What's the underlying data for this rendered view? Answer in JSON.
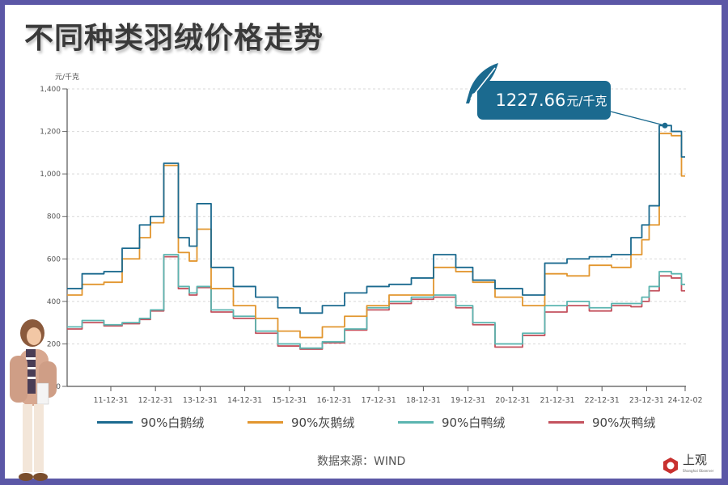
{
  "header": {
    "title": "不同种类羽绒价格走势"
  },
  "axis": {
    "y_unit": "元/千克",
    "y_ticks": [
      "0",
      "200",
      "400",
      "600",
      "800",
      "1,000",
      "1,200",
      "1,400"
    ],
    "x_ticks": [
      "11-12-31",
      "12-12-31",
      "13-12-31",
      "14-12-31",
      "15-12-31",
      "16-12-31",
      "17-12-31",
      "18-12-31",
      "19-12-31",
      "20-12-31",
      "21-12-31",
      "22-12-31",
      "23-12-31",
      "24-12-02"
    ]
  },
  "callout": {
    "value": "1227.66",
    "unit": "元/千克",
    "icon": "feather-icon",
    "color": "#1b6a8f"
  },
  "legend": [
    {
      "label": "90%白鹅绒",
      "color": "#1b6a8f"
    },
    {
      "label": "90%灰鹅绒",
      "color": "#e2962f"
    },
    {
      "label": "90%白鸭绒",
      "color": "#5bb5b0"
    },
    {
      "label": "90%灰鸭绒",
      "color": "#c4525e"
    }
  ],
  "footer": {
    "source": "数据来源：WIND",
    "logo_text": "上观",
    "logo_sub": "Shanghai Observer"
  },
  "chart_data": {
    "type": "line",
    "title": "不同种类羽绒价格走势",
    "xlabel": "",
    "ylabel": "元/千克",
    "ylim": [
      0,
      1400
    ],
    "grid": true,
    "legend_position": "bottom",
    "x": [
      "2010-09",
      "2011-06",
      "2011-12-31",
      "2012-06",
      "2012-10",
      "2012-12-31",
      "2013-03",
      "2013-07",
      "2013-10",
      "2013-12-31",
      "2014-06",
      "2014-12-31",
      "2015-06",
      "2015-12-31",
      "2016-06",
      "2016-12-31",
      "2017-06",
      "2017-12-31",
      "2018-06",
      "2018-12-31",
      "2019-06",
      "2019-12-31",
      "2020-03",
      "2020-12-31",
      "2021-06",
      "2021-12-31",
      "2022-06",
      "2022-12-31",
      "2023-06",
      "2023-09",
      "2023-12-31",
      "2024-03",
      "2024-06",
      "2024-09",
      "2024-12-02"
    ],
    "series": [
      {
        "name": "90%白鹅绒",
        "color": "#1b6a8f",
        "values": [
          460,
          530,
          540,
          650,
          760,
          800,
          1050,
          700,
          660,
          860,
          560,
          470,
          420,
          370,
          345,
          380,
          440,
          470,
          480,
          510,
          620,
          560,
          500,
          460,
          430,
          580,
          600,
          610,
          620,
          700,
          760,
          850,
          1227.66,
          1200,
          1080
        ]
      },
      {
        "name": "90%灰鹅绒",
        "color": "#e2962f",
        "values": [
          430,
          480,
          490,
          600,
          700,
          770,
          1040,
          630,
          590,
          740,
          460,
          380,
          320,
          260,
          230,
          280,
          330,
          380,
          430,
          430,
          560,
          540,
          490,
          420,
          380,
          530,
          520,
          570,
          560,
          620,
          690,
          760,
          1190,
          1180,
          990
        ]
      },
      {
        "name": "90%白鸭绒",
        "color": "#5bb5b0",
        "values": [
          280,
          310,
          290,
          300,
          320,
          360,
          620,
          470,
          440,
          470,
          360,
          330,
          260,
          200,
          180,
          210,
          270,
          370,
          400,
          420,
          430,
          380,
          300,
          200,
          250,
          380,
          400,
          370,
          390,
          390,
          420,
          470,
          540,
          530,
          480
        ]
      },
      {
        "name": "90%灰鸭绒",
        "color": "#c4525e",
        "values": [
          270,
          300,
          285,
          295,
          315,
          355,
          610,
          460,
          430,
          465,
          350,
          320,
          250,
          190,
          175,
          205,
          265,
          360,
          390,
          410,
          420,
          370,
          290,
          185,
          240,
          350,
          380,
          355,
          380,
          375,
          400,
          450,
          520,
          510,
          450
        ]
      }
    ],
    "annotations": [
      {
        "text": "1227.66元/千克",
        "x": "2024-06",
        "series": "90%白鹅绒"
      }
    ],
    "source": "数据来源：WIND"
  }
}
